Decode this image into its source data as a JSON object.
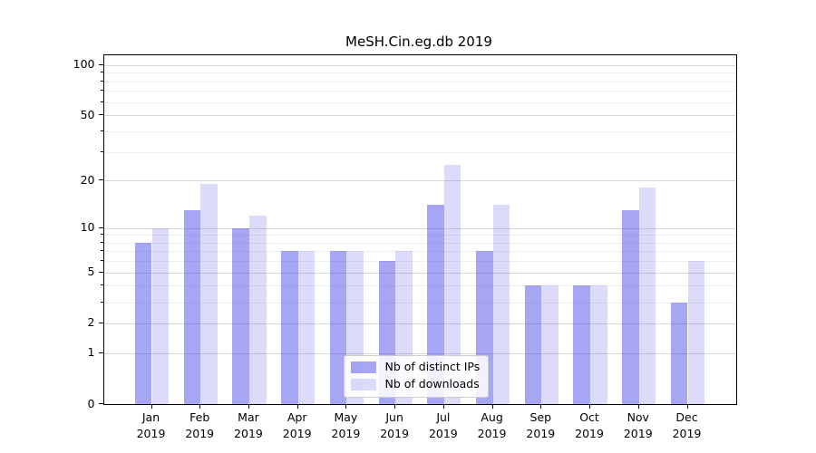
{
  "title": "MeSH.Cin.eg.db 2019",
  "colors": {
    "ips_bar_fill": "#a6a6f2",
    "downloads_bar_fill": "#dcdcf9",
    "bar_base_rgba": "rgba(70,70,230,ALPHA)",
    "ips_alpha": 0.48,
    "downloads_alpha": 0.19,
    "major_grid": "#d9d9d9",
    "minor_grid": "#efefef",
    "axis": "#000000"
  },
  "chart_data": {
    "type": "bar",
    "title": "MeSH.Cin.eg.db 2019",
    "categories": [
      "Jan",
      "Feb",
      "Mar",
      "Apr",
      "May",
      "Jun",
      "Jul",
      "Aug",
      "Sep",
      "Oct",
      "Nov",
      "Dec"
    ],
    "category_year": "2019",
    "series": [
      {
        "name": "Nb of distinct IPs",
        "values": [
          8,
          13,
          10,
          7,
          7,
          6,
          14,
          7,
          4,
          4,
          13,
          3
        ]
      },
      {
        "name": "Nb of downloads",
        "values": [
          10,
          19,
          12,
          7,
          7,
          7,
          25,
          14,
          4,
          4,
          18,
          6
        ]
      }
    ],
    "xlabel": "",
    "ylabel": "",
    "yscale": "log1p",
    "y_major_ticks": [
      0,
      1,
      2,
      5,
      10,
      20,
      50,
      100
    ],
    "y_minor_ticks": [
      3,
      4,
      6,
      7,
      8,
      9,
      30,
      40,
      60,
      70,
      80,
      90
    ],
    "ylim": [
      0,
      115
    ],
    "grid": true,
    "legend_position": "lower center"
  }
}
